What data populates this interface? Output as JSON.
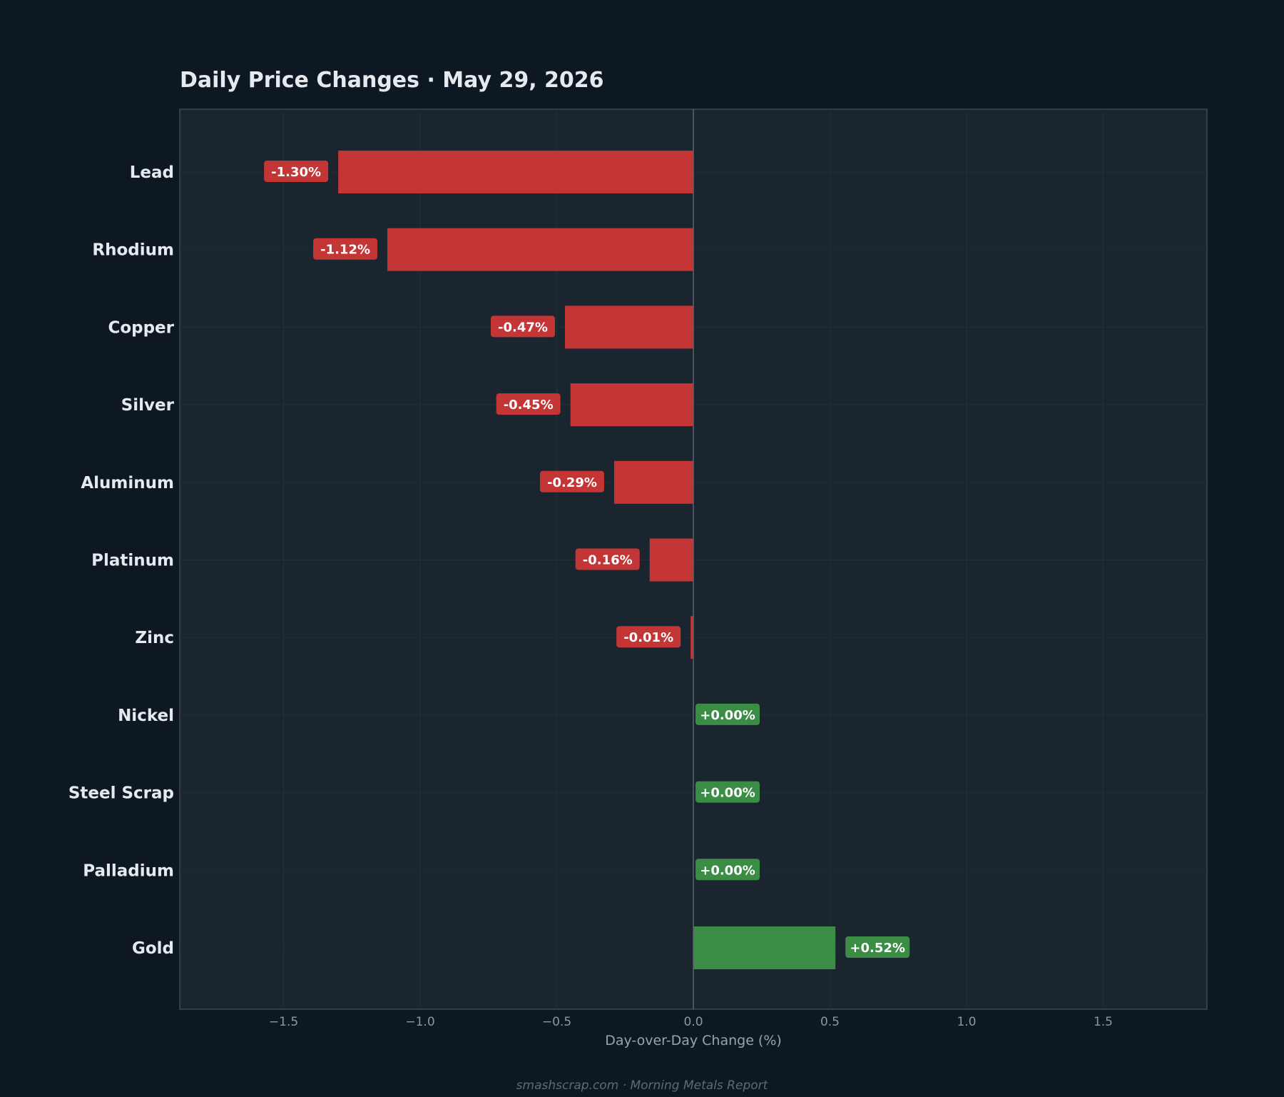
{
  "chart_data": {
    "type": "bar",
    "orientation": "horizontal",
    "title": "Daily Price Changes  ·  May 29, 2026",
    "xlabel": "Day-over-Day Change (%)",
    "ylabel": "",
    "xlim": [
      -1.88,
      1.88
    ],
    "xticks": [
      -1.5,
      -1.0,
      -0.5,
      0.0,
      0.5,
      1.0,
      1.5
    ],
    "xtick_labels": [
      "−1.5",
      "−1.0",
      "−0.5",
      "0.0",
      "0.5",
      "1.0",
      "1.5"
    ],
    "categories": [
      "Lead",
      "Rhodium",
      "Copper",
      "Silver",
      "Aluminum",
      "Platinum",
      "Zinc",
      "Nickel",
      "Steel Scrap",
      "Palladium",
      "Gold"
    ],
    "values": [
      -1.3,
      -1.12,
      -0.47,
      -0.45,
      -0.29,
      -0.16,
      -0.01,
      0.0,
      0.0,
      0.0,
      0.52
    ],
    "data_labels": [
      "-1.30%",
      "-1.12%",
      "-0.47%",
      "-0.45%",
      "-0.29%",
      "-0.16%",
      "-0.01%",
      "+0.00%",
      "+0.00%",
      "+0.00%",
      "+0.52%"
    ],
    "grid": true,
    "colors": {
      "negative": "#c43535",
      "positive": "#3b8c45",
      "background": "#0e1822",
      "plot_background": "#1b2530",
      "zero_line": "#5a6470"
    },
    "footer": "smashscrap.com  ·  Morning Metals Report"
  }
}
